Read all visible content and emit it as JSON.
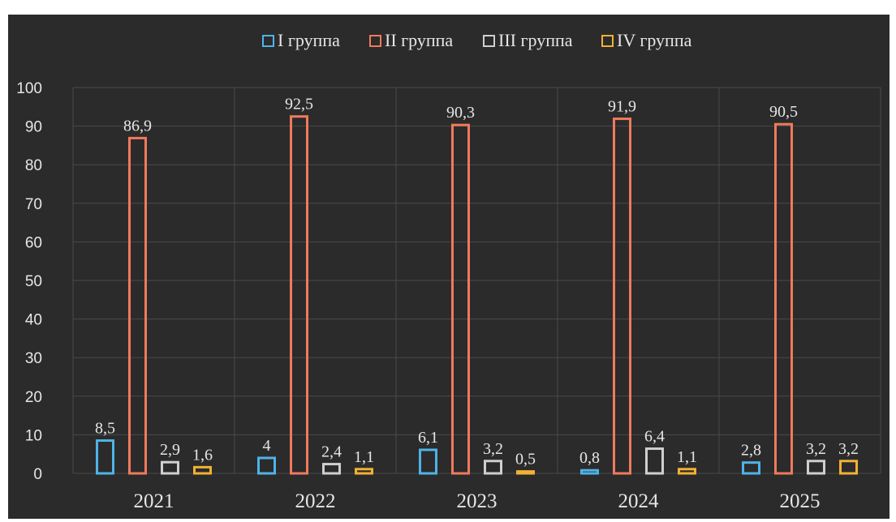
{
  "chart_data": {
    "type": "bar",
    "categories": [
      "2021",
      "2022",
      "2023",
      "2024",
      "2025"
    ],
    "series": [
      {
        "name": "I группа",
        "values": [
          8.5,
          4,
          6.1,
          0.8,
          2.8
        ],
        "labels": [
          "8,5",
          "4",
          "6,1",
          "0,8",
          "2,8"
        ],
        "color": "#4fb3e8"
      },
      {
        "name": "II группа",
        "values": [
          86.9,
          92.5,
          90.3,
          91.9,
          90.5
        ],
        "labels": [
          "86,9",
          "92,5",
          "90,3",
          "91,9",
          "90,5"
        ],
        "color": "#f07a5c"
      },
      {
        "name": "III группа",
        "values": [
          2.9,
          2.4,
          3.2,
          6.4,
          3.2
        ],
        "labels": [
          "2,9",
          "2,4",
          "3,2",
          "6,4",
          "3,2"
        ],
        "color": "#cfcfcf"
      },
      {
        "name": "IV группа",
        "values": [
          1.6,
          1.1,
          0.5,
          1.1,
          3.2
        ],
        "labels": [
          "1,6",
          "1,1",
          "0,5",
          "1,1",
          "3,2"
        ],
        "color": "#f2b134"
      }
    ],
    "ylim": [
      0,
      100
    ],
    "yticks": [
      "0",
      "10",
      "20",
      "30",
      "40",
      "50",
      "60",
      "70",
      "80",
      "90",
      "100"
    ],
    "grid": true,
    "legend_position": "top",
    "background": "#2b2b2b",
    "grid_color": "#4a4a4a",
    "text_color": "#e6e6e6"
  }
}
